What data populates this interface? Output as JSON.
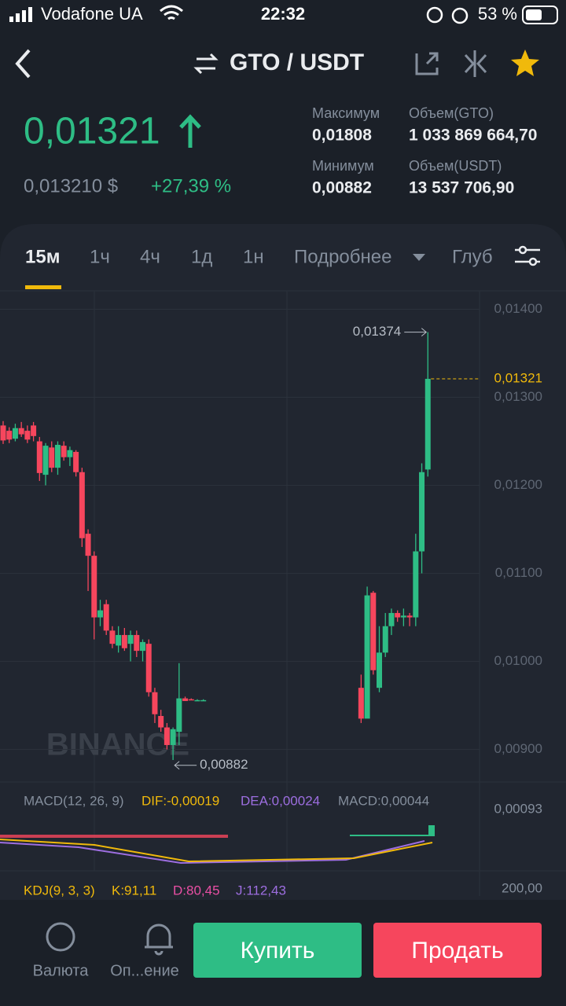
{
  "status_bar": {
    "carrier": "Vodafone UA",
    "time": "22:32",
    "battery": "53 %"
  },
  "header": {
    "pair": "GTO / USDT"
  },
  "ticker": {
    "price": "0,01321",
    "price_usd": "0,013210 $",
    "change": "+27,39 %",
    "high_label": "Максимум",
    "high": "0,01808",
    "low_label": "Минимум",
    "low": "0,00882",
    "vol_base_label": "Объем(GTO)",
    "vol_base": "1 033 869 664,70",
    "vol_quote_label": "Объем(USDT)",
    "vol_quote": "13 537 706,90"
  },
  "tabs": [
    "15м",
    "1ч",
    "4ч",
    "1д",
    "1н",
    "Подробнее",
    "Глуб"
  ],
  "chart_data": {
    "type": "candlestick",
    "watermark": "BINANCE",
    "x": [
      0,
      1,
      2,
      3,
      4,
      5,
      6,
      7,
      8,
      9,
      10,
      11,
      12,
      13,
      14,
      15,
      16,
      17,
      18,
      19,
      20,
      21,
      22,
      23,
      24,
      25,
      26,
      27,
      28,
      29,
      30,
      31,
      32,
      33,
      59,
      60,
      61,
      62,
      63,
      64,
      65,
      66,
      67,
      68,
      69,
      70
    ],
    "open": [
      0.01268,
      0.01262,
      0.01253,
      0.01265,
      0.01262,
      0.01268,
      0.0125,
      0.01212,
      0.01243,
      0.0122,
      0.01245,
      0.01232,
      0.01238,
      0.01215,
      0.01145,
      0.0112,
      0.0105,
      0.01065,
      0.01035,
      0.01018,
      0.0103,
      0.0102,
      0.0103,
      0.01012,
      0.0102,
      0.00965,
      0.00938,
      0.00925,
      0.00905,
      0.0092,
      0.00958,
      0.00957,
      0.00956,
      0.00956,
      0.0097,
      0.00935,
      0.01078,
      0.0097,
      0.0101,
      0.0104,
      0.01055,
      0.0105,
      0.01052,
      0.0105,
      0.01125,
      0.01218
    ],
    "high": [
      0.01273,
      0.01266,
      0.0127,
      0.01272,
      0.01268,
      0.01272,
      0.01255,
      0.01248,
      0.0125,
      0.0125,
      0.0125,
      0.01244,
      0.0124,
      0.0122,
      0.0115,
      0.01125,
      0.0107,
      0.0107,
      0.0104,
      0.0104,
      0.01038,
      0.01035,
      0.01035,
      0.01025,
      0.01025,
      0.0097,
      0.00945,
      0.0093,
      0.00925,
      0.00998,
      0.0096,
      0.00958,
      0.00957,
      0.00957,
      0.00985,
      0.01085,
      0.0108,
      0.0104,
      0.01055,
      0.0106,
      0.01058,
      0.0106,
      0.01055,
      0.01145,
      0.01225,
      0.01374
    ],
    "low": [
      0.01247,
      0.01248,
      0.0125,
      0.01255,
      0.01248,
      0.0125,
      0.01205,
      0.012,
      0.01215,
      0.01212,
      0.01228,
      0.01222,
      0.0121,
      0.0113,
      0.0108,
      0.01025,
      0.0104,
      0.0103,
      0.01015,
      0.0101,
      0.01012,
      0.01,
      0.01005,
      0.01,
      0.0096,
      0.0093,
      0.0092,
      0.009,
      0.00888,
      0.00905,
      0.00955,
      0.00956,
      0.00955,
      0.00955,
      0.0093,
      0.00938,
      0.00985,
      0.00965,
      0.01005,
      0.0103,
      0.01045,
      0.0104,
      0.0104,
      0.0104,
      0.011,
      0.0121
    ],
    "close": [
      0.01251,
      0.01252,
      0.01265,
      0.01258,
      0.01252,
      0.01256,
      0.01214,
      0.01245,
      0.0122,
      0.01246,
      0.01232,
      0.0124,
      0.01215,
      0.0114,
      0.0112,
      0.0105,
      0.01058,
      0.01035,
      0.0102,
      0.0103,
      0.01015,
      0.0103,
      0.01012,
      0.01022,
      0.00965,
      0.0094,
      0.00925,
      0.00905,
      0.00923,
      0.00958,
      0.00955,
      0.00956,
      0.00956,
      0.00956,
      0.00935,
      0.01075,
      0.0099,
      0.0101,
      0.0104,
      0.01055,
      0.0105,
      0.01052,
      0.0105,
      0.01125,
      0.01215,
      0.01321
    ],
    "xlim": [
      0,
      78
    ],
    "ylim": [
      0.00863,
      0.01421
    ],
    "yticks": [
      {
        "value": 0.014,
        "label": "0,01400"
      },
      {
        "value": 0.013,
        "label": "0,01300"
      },
      {
        "value": 0.012,
        "label": "0,01200"
      },
      {
        "value": 0.011,
        "label": "0,01100"
      },
      {
        "value": 0.01,
        "label": "0,01000"
      },
      {
        "value": 0.009,
        "label": "0,00900"
      }
    ],
    "last_price": {
      "value": 0.01321,
      "label": "0,01321"
    },
    "high_marker": {
      "value": 0.01374,
      "label": "0,01374"
    },
    "low_marker": {
      "value": 0.00882,
      "label": "0,00882"
    },
    "up_color": "#2ebd85",
    "down_color": "#f6465d"
  },
  "indicators": {
    "macd": "MACD(12, 26, 9)",
    "dif": "DIF:-0,00019",
    "dea": "DEA:0,00024",
    "macd_value": "MACD:0,00044",
    "macd_axis": "0,00093",
    "kdj": "KDJ(9, 3, 3)",
    "k": "K:91,11",
    "d": "D:80,45",
    "j": "J:112,43",
    "kdj_axis": "200,00"
  },
  "bottom": {
    "currency": "Валюта",
    "alerts": "Оп...ение",
    "buy": "Купить",
    "sell": "Продать"
  }
}
